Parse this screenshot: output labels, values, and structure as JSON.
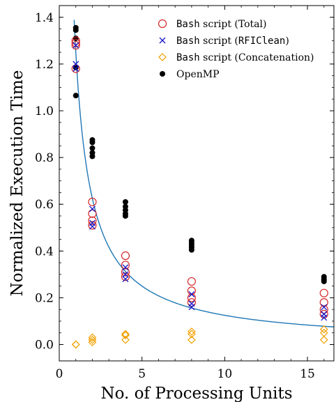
{
  "chart_data": {
    "type": "scatter",
    "xlabel": "No. of Processing Units",
    "ylabel": "Normalized Execution Time",
    "xlim": [
      0,
      16.6
    ],
    "ylim": [
      -0.07,
      1.45
    ],
    "x_ticks": [
      0,
      5,
      10,
      15
    ],
    "y_ticks": [
      0.0,
      0.2,
      0.4,
      0.6,
      0.8,
      1.0,
      1.2,
      1.4
    ],
    "grid": false,
    "legend_position": "top-right",
    "series": [
      {
        "legend_code": "Bash",
        "legend_suffix": " script (Total)",
        "marker": "open-circle",
        "color": "#d62728",
        "points": [
          [
            1,
            1.3
          ],
          [
            1,
            1.28
          ],
          [
            1,
            1.18
          ],
          [
            1,
            1.29
          ],
          [
            2,
            0.61
          ],
          [
            2,
            0.53
          ],
          [
            2,
            0.51
          ],
          [
            2,
            0.56
          ],
          [
            4,
            0.38
          ],
          [
            4,
            0.34
          ],
          [
            4,
            0.31
          ],
          [
            4,
            0.29
          ],
          [
            8,
            0.27
          ],
          [
            8,
            0.23
          ],
          [
            8,
            0.2
          ],
          [
            8,
            0.18
          ],
          [
            16,
            0.22
          ],
          [
            16,
            0.18
          ],
          [
            16,
            0.15
          ],
          [
            16,
            0.13
          ]
        ]
      },
      {
        "legend_code": "Bash",
        "legend_suffix": " script (",
        "legend_code2": "RFIClean",
        "legend_suffix2": ")",
        "marker": "x",
        "color": "#1515c8",
        "points": [
          [
            1,
            1.28
          ],
          [
            1,
            1.2
          ],
          [
            1,
            1.18
          ],
          [
            2,
            0.58
          ],
          [
            2,
            0.52
          ],
          [
            2,
            0.505
          ],
          [
            4,
            0.33
          ],
          [
            4,
            0.3
          ],
          [
            4,
            0.28
          ],
          [
            8,
            0.215
          ],
          [
            8,
            0.175
          ],
          [
            8,
            0.16
          ],
          [
            16,
            0.16
          ],
          [
            16,
            0.13
          ],
          [
            16,
            0.115
          ]
        ]
      },
      {
        "legend_code": "Bash",
        "legend_suffix": " script (Concatenation)",
        "marker": "open-diamond",
        "color": "#f0a000",
        "points": [
          [
            1,
            0.0
          ],
          [
            1,
            0.0
          ],
          [
            2,
            0.03
          ],
          [
            2,
            0.02
          ],
          [
            2,
            0.01
          ],
          [
            4,
            0.045
          ],
          [
            4,
            0.04
          ],
          [
            4,
            0.02
          ],
          [
            8,
            0.055
          ],
          [
            8,
            0.045
          ],
          [
            8,
            0.02
          ],
          [
            16,
            0.065
          ],
          [
            16,
            0.05
          ],
          [
            16,
            0.02
          ]
        ]
      },
      {
        "legend_label": "OpenMP",
        "marker": "filled-circle",
        "color": "#000000",
        "points": [
          [
            1,
            1.355
          ],
          [
            1,
            1.345
          ],
          [
            1,
            1.31
          ],
          [
            1,
            1.185
          ],
          [
            1,
            1.065
          ],
          [
            2,
            0.875
          ],
          [
            2,
            0.865
          ],
          [
            2,
            0.84
          ],
          [
            2,
            0.82
          ],
          [
            2,
            0.805
          ],
          [
            4,
            0.61
          ],
          [
            4,
            0.59
          ],
          [
            4,
            0.575
          ],
          [
            4,
            0.56
          ],
          [
            4,
            0.55
          ],
          [
            8,
            0.445
          ],
          [
            8,
            0.435
          ],
          [
            8,
            0.425
          ],
          [
            8,
            0.415
          ],
          [
            8,
            0.405
          ],
          [
            16,
            0.29
          ],
          [
            16,
            0.28
          ],
          [
            16,
            0.275
          ],
          [
            16,
            0.27
          ]
        ]
      }
    ],
    "fit_curve": {
      "color": "#1f77b4",
      "formula": "y = a / x",
      "a": 1.25,
      "x_range": [
        0.9,
        16.6
      ]
    }
  }
}
